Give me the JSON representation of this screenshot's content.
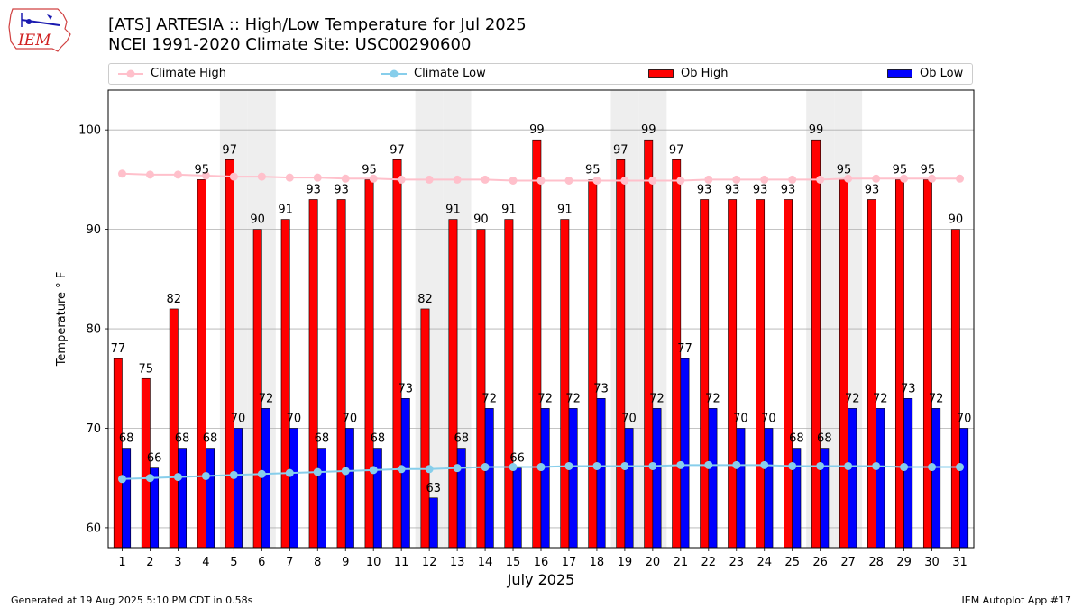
{
  "header": {
    "title_line1": "[ATS] ARTESIA :: High/Low Temperature for Jul 2025",
    "title_line2": "NCEI 1991-2020 Climate Site: USC00290600"
  },
  "logo": {
    "text": "IEM"
  },
  "footer": {
    "generated": "Generated at 19 Aug 2025 5:10 PM CDT in 0.58s",
    "app": "IEM Autoplot App #17"
  },
  "colors": {
    "ob_high": "#ff0000",
    "ob_low": "#0000ff",
    "climate_high": "#ffc0cb",
    "climate_low": "#87ceeb",
    "weekend_band": "#eeeeee",
    "grid": "#b0b0b0"
  },
  "chart_data": {
    "type": "bar",
    "xlabel": "July 2025",
    "ylabel": "Temperature ° F",
    "ylim": [
      58,
      104
    ],
    "yticks": [
      60,
      70,
      80,
      90,
      100
    ],
    "grid": "horizontal",
    "legend_position": "top",
    "categories": [
      "1",
      "2",
      "3",
      "4",
      "5",
      "6",
      "7",
      "8",
      "9",
      "10",
      "11",
      "12",
      "13",
      "14",
      "15",
      "16",
      "17",
      "18",
      "19",
      "20",
      "21",
      "22",
      "23",
      "24",
      "25",
      "26",
      "27",
      "28",
      "29",
      "30",
      "31"
    ],
    "shaded_days": [
      5,
      6,
      12,
      13,
      19,
      20,
      26,
      27
    ],
    "legend": [
      {
        "name": "Climate High",
        "kind": "line",
        "color": "#ffc0cb"
      },
      {
        "name": "Climate Low",
        "kind": "line",
        "color": "#87ceeb"
      },
      {
        "name": "Ob High",
        "kind": "bar",
        "color": "#ff0000"
      },
      {
        "name": "Ob Low",
        "kind": "bar",
        "color": "#0000ff"
      }
    ],
    "series": [
      {
        "name": "Ob High",
        "kind": "bar",
        "values": [
          77,
          75,
          82,
          95,
          97,
          90,
          91,
          93,
          93,
          95,
          97,
          82,
          91,
          90,
          91,
          99,
          91,
          95,
          97,
          99,
          97,
          93,
          93,
          93,
          93,
          99,
          95,
          93,
          95,
          95,
          90
        ]
      },
      {
        "name": "Ob Low",
        "kind": "bar",
        "values": [
          68,
          66,
          68,
          68,
          70,
          72,
          70,
          68,
          70,
          68,
          73,
          63,
          68,
          72,
          66,
          72,
          72,
          73,
          70,
          72,
          77,
          72,
          70,
          70,
          68,
          68,
          72,
          72,
          73,
          72,
          70
        ]
      },
      {
        "name": "Climate High",
        "kind": "line",
        "values": [
          95.6,
          95.5,
          95.5,
          95.4,
          95.3,
          95.3,
          95.2,
          95.2,
          95.1,
          95.1,
          95.0,
          95.0,
          95.0,
          95.0,
          94.9,
          94.9,
          94.9,
          94.9,
          94.9,
          94.9,
          94.9,
          95.0,
          95.0,
          95.0,
          95.0,
          95.0,
          95.1,
          95.1,
          95.1,
          95.1,
          95.1
        ]
      },
      {
        "name": "Climate Low",
        "kind": "line",
        "values": [
          64.9,
          65.0,
          65.1,
          65.2,
          65.3,
          65.4,
          65.5,
          65.6,
          65.7,
          65.8,
          65.9,
          65.9,
          66.0,
          66.1,
          66.1,
          66.1,
          66.2,
          66.2,
          66.2,
          66.2,
          66.3,
          66.3,
          66.3,
          66.3,
          66.2,
          66.2,
          66.2,
          66.2,
          66.1,
          66.1,
          66.1
        ]
      }
    ]
  }
}
